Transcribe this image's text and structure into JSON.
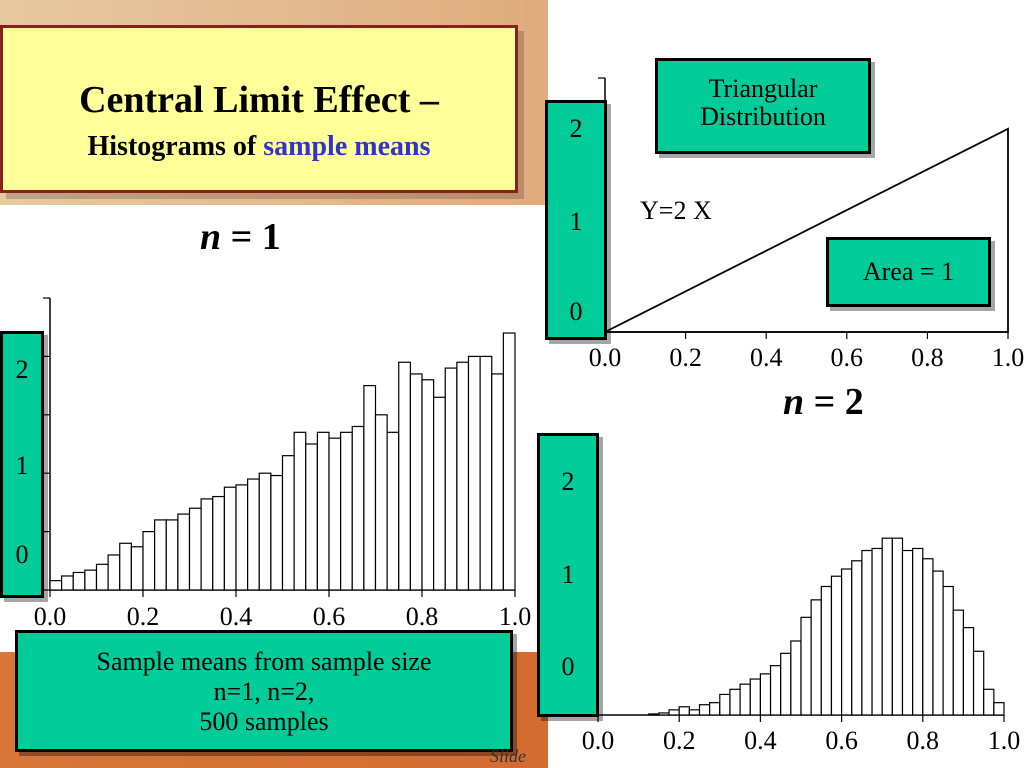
{
  "title": {
    "line1": "Central Limit Effect –",
    "line2_prefix": "Histograms of ",
    "line2_highlight": "sample means"
  },
  "n1_label": {
    "var": "n",
    "rest": " = 1"
  },
  "n2_label": {
    "var": "n",
    "rest": " = 2"
  },
  "triangular_box": {
    "line1": "Triangular",
    "line2": "Distribution"
  },
  "equation": "Y=2 X",
  "area_box": "Area = 1",
  "caption": {
    "line1": "Sample means from sample size",
    "line2": "n=1, n=2,",
    "line3": "500 samples"
  },
  "slide_label": "Slide",
  "chart_data": [
    {
      "id": "n1",
      "type": "bar",
      "title": "n = 1",
      "xlim": [
        0,
        1
      ],
      "ylim": [
        0,
        2.5
      ],
      "x_ticks": [
        "0.0",
        "0.2",
        "0.4",
        "0.6",
        "0.8",
        "1.0"
      ],
      "y_ticks": [
        "2",
        "1",
        "0"
      ],
      "bin_width": 0.025,
      "values": [
        0.08,
        0.12,
        0.15,
        0.17,
        0.22,
        0.3,
        0.4,
        0.37,
        0.5,
        0.6,
        0.6,
        0.65,
        0.7,
        0.78,
        0.8,
        0.88,
        0.9,
        0.95,
        1.0,
        0.98,
        1.15,
        1.35,
        1.25,
        1.35,
        1.3,
        1.35,
        1.4,
        1.75,
        1.5,
        1.35,
        1.95,
        1.85,
        1.8,
        1.65,
        1.9,
        1.95,
        2.0,
        2.0,
        1.85,
        2.2
      ]
    },
    {
      "id": "n2",
      "type": "bar",
      "title": "n = 2",
      "xlim": [
        0,
        1
      ],
      "ylim": [
        0,
        2.5
      ],
      "x_ticks": [
        "0.0",
        "0.2",
        "0.4",
        "0.6",
        "0.8",
        "1.0"
      ],
      "y_ticks": [
        "2",
        "1",
        "0"
      ],
      "bin_width": 0.025,
      "values": [
        0.0,
        0.0,
        0.0,
        0.0,
        0.0,
        0.01,
        0.02,
        0.05,
        0.08,
        0.05,
        0.1,
        0.12,
        0.2,
        0.25,
        0.3,
        0.35,
        0.4,
        0.48,
        0.6,
        0.72,
        0.95,
        1.12,
        1.25,
        1.35,
        1.42,
        1.5,
        1.6,
        1.62,
        1.72,
        1.72,
        1.6,
        1.62,
        1.52,
        1.4,
        1.25,
        1.02,
        0.85,
        0.62,
        0.25,
        0.12
      ]
    },
    {
      "id": "triangular",
      "type": "line",
      "title": "Triangular Distribution",
      "xlim": [
        0,
        1
      ],
      "ylim": [
        0,
        2.5
      ],
      "x_ticks": [
        "0.0",
        "0.2",
        "0.4",
        "0.6",
        "0.8",
        "1.0"
      ],
      "y_ticks": [
        "2",
        "1",
        "0"
      ],
      "x": [
        0,
        1,
        1
      ],
      "y": [
        0,
        2,
        0
      ],
      "annotation": "Y=2 X"
    }
  ]
}
